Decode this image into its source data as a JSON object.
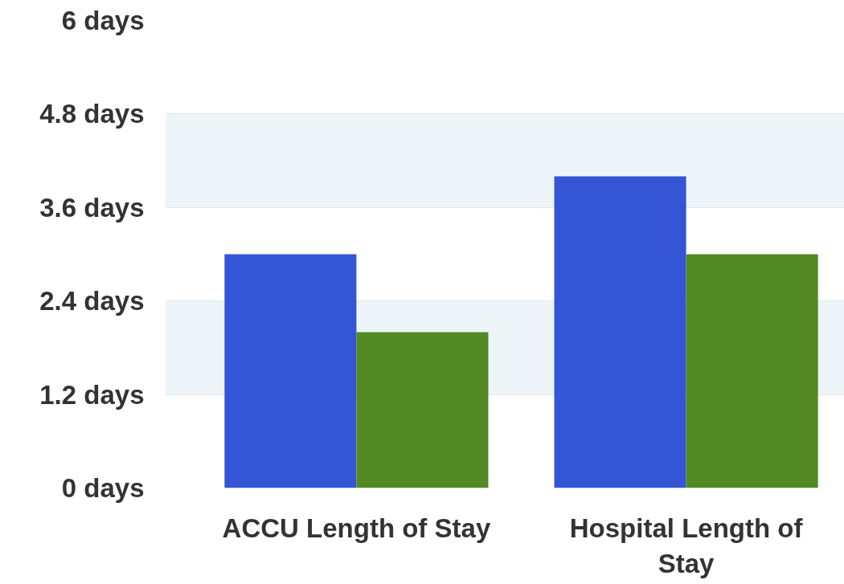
{
  "chart_data": {
    "type": "bar",
    "categories": [
      "ACCU Length of Stay",
      "Hospital Length of\nStay"
    ],
    "series": [
      {
        "color": "#3355d6",
        "values": [
          3.0,
          4.0
        ]
      },
      {
        "color": "#548a23",
        "values": [
          2.0,
          3.0
        ]
      }
    ],
    "ylim": [
      0,
      6
    ],
    "yticks": [
      {
        "value": 0,
        "label": "0 days"
      },
      {
        "value": 1.2,
        "label": "1.2 days"
      },
      {
        "value": 2.4,
        "label": "2.4 days"
      },
      {
        "value": 3.6,
        "label": "3.6 days"
      },
      {
        "value": 4.8,
        "label": "4.8 days"
      },
      {
        "value": 6,
        "label": "6 days"
      }
    ],
    "grid": "y"
  }
}
